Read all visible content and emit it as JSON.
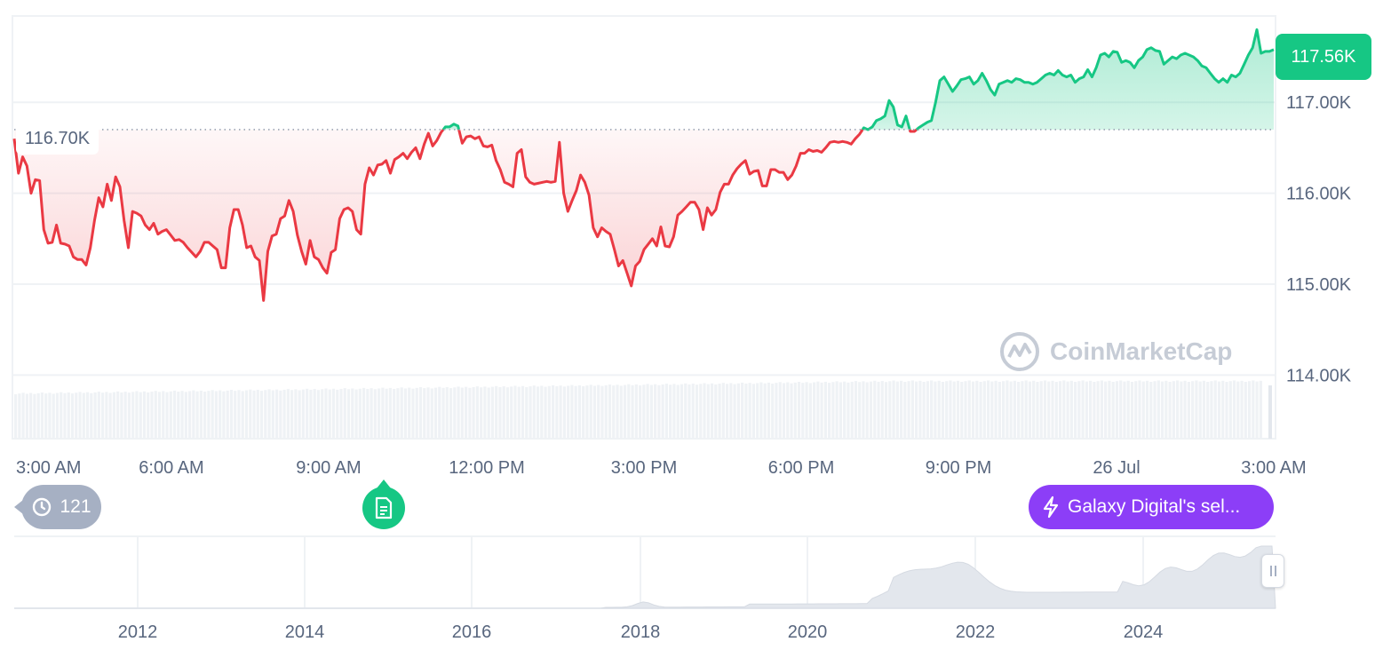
{
  "chart_data": {
    "type": "line",
    "ylim": [
      113.3,
      117.95
    ],
    "y_ticks": [
      {
        "value": 117,
        "label": "117.00K"
      },
      {
        "value": 116,
        "label": "116.00K"
      },
      {
        "value": 115,
        "label": "115.00K"
      },
      {
        "value": 114,
        "label": "114.00K"
      }
    ],
    "x_ticks": [
      "3:00 AM",
      "6:00 AM",
      "9:00 AM",
      "12:00 PM",
      "3:00 PM",
      "6:00 PM",
      "9:00 PM",
      "26 Jul",
      "3:00 AM"
    ],
    "reference_value": 116.7,
    "reference_label": "116.70K",
    "current_price_label": "117.56K",
    "series": [
      {
        "up_color": "#16c784",
        "down_color": "#ea3943",
        "values": [
          116.6,
          116.22,
          116.4,
          116.3,
          116.0,
          116.15,
          116.14,
          115.6,
          115.45,
          115.46,
          115.65,
          115.45,
          115.44,
          115.42,
          115.3,
          115.27,
          115.27,
          115.21,
          115.4,
          115.7,
          115.95,
          115.85,
          116.1,
          115.92,
          116.18,
          116.07,
          115.7,
          115.4,
          115.8,
          115.78,
          115.75,
          115.65,
          115.6,
          115.67,
          115.55,
          115.58,
          115.6,
          115.54,
          115.48,
          115.49,
          115.46,
          115.4,
          115.35,
          115.3,
          115.36,
          115.46,
          115.46,
          115.42,
          115.38,
          115.18,
          115.18,
          115.62,
          115.82,
          115.82,
          115.65,
          115.4,
          115.42,
          115.3,
          115.26,
          114.82,
          115.36,
          115.53,
          115.55,
          115.72,
          115.75,
          115.92,
          115.8,
          115.54,
          115.36,
          115.22,
          115.48,
          115.3,
          115.27,
          115.18,
          115.12,
          115.35,
          115.38,
          115.72,
          115.82,
          115.84,
          115.8,
          115.6,
          115.55,
          116.1,
          116.28,
          116.2,
          116.31,
          116.32,
          116.36,
          116.22,
          116.37,
          116.4,
          116.44,
          116.38,
          116.45,
          116.5,
          116.38,
          116.54,
          116.66,
          116.52,
          116.58,
          116.67,
          116.73,
          116.73,
          116.76,
          116.74,
          116.55,
          116.62,
          116.63,
          116.6,
          116.62,
          116.52,
          116.51,
          116.53,
          116.36,
          116.26,
          116.12,
          116.1,
          116.07,
          116.44,
          116.48,
          116.18,
          116.12,
          116.1,
          116.11,
          116.12,
          116.13,
          116.12,
          116.13,
          116.56,
          116.0,
          115.8,
          115.92,
          116.03,
          116.2,
          116.12,
          115.98,
          115.62,
          115.52,
          115.62,
          115.58,
          115.55,
          115.38,
          115.2,
          115.26,
          115.12,
          114.98,
          115.2,
          115.25,
          115.38,
          115.44,
          115.5,
          115.42,
          115.63,
          115.42,
          115.41,
          115.52,
          115.76,
          115.8,
          115.85,
          115.9,
          115.9,
          115.82,
          115.6,
          115.84,
          115.76,
          115.82,
          116.01,
          116.1,
          116.1,
          116.2,
          116.27,
          116.32,
          116.36,
          116.21,
          116.24,
          116.25,
          116.08,
          116.08,
          116.26,
          116.26,
          116.23,
          116.23,
          116.15,
          116.2,
          116.3,
          116.44,
          116.44,
          116.48,
          116.46,
          116.47,
          116.45,
          116.5,
          116.56,
          116.57,
          116.56,
          116.57,
          116.56,
          116.54,
          116.6,
          116.65,
          116.72,
          116.7,
          116.73,
          116.8,
          116.82,
          116.85,
          117.02,
          116.95,
          116.75,
          116.73,
          116.85,
          116.68,
          116.68,
          116.72,
          116.75,
          116.78,
          116.8,
          117.0,
          117.24,
          117.28,
          117.2,
          117.12,
          117.18,
          117.25,
          117.26,
          117.28,
          117.2,
          117.24,
          117.32,
          117.24,
          117.14,
          117.08,
          117.2,
          117.22,
          117.24,
          117.22,
          117.26,
          117.25,
          117.22,
          117.22,
          117.2,
          117.22,
          117.26,
          117.3,
          117.32,
          117.3,
          117.35,
          117.3,
          117.28,
          117.3,
          117.22,
          117.26,
          117.28,
          117.36,
          117.28,
          117.38,
          117.52,
          117.54,
          117.5,
          117.56,
          117.55,
          117.44,
          117.46,
          117.44,
          117.38,
          117.46,
          117.5,
          117.58,
          117.6,
          117.57,
          117.56,
          117.42,
          117.46,
          117.5,
          117.48,
          117.52,
          117.54,
          117.52,
          117.5,
          117.46,
          117.4,
          117.38,
          117.32,
          117.26,
          117.22,
          117.26,
          117.22,
          117.3,
          117.28,
          117.32,
          117.42,
          117.52,
          117.6,
          117.8,
          117.54,
          117.56,
          117.56,
          117.58
        ]
      }
    ],
    "volume_color": "#eff2f5",
    "navigator": {
      "x_ticks": [
        "2012",
        "2014",
        "2016",
        "2018",
        "2020",
        "2022",
        "2024"
      ]
    }
  },
  "watermark": {
    "text": "CoinMarketCap"
  },
  "history_chip": {
    "count": "121",
    "icon": "history-icon"
  },
  "news_pin": {
    "icon": "document-icon"
  },
  "event_chip": {
    "text": "Galaxy Digital's sel...",
    "icon": "lightning-icon"
  }
}
